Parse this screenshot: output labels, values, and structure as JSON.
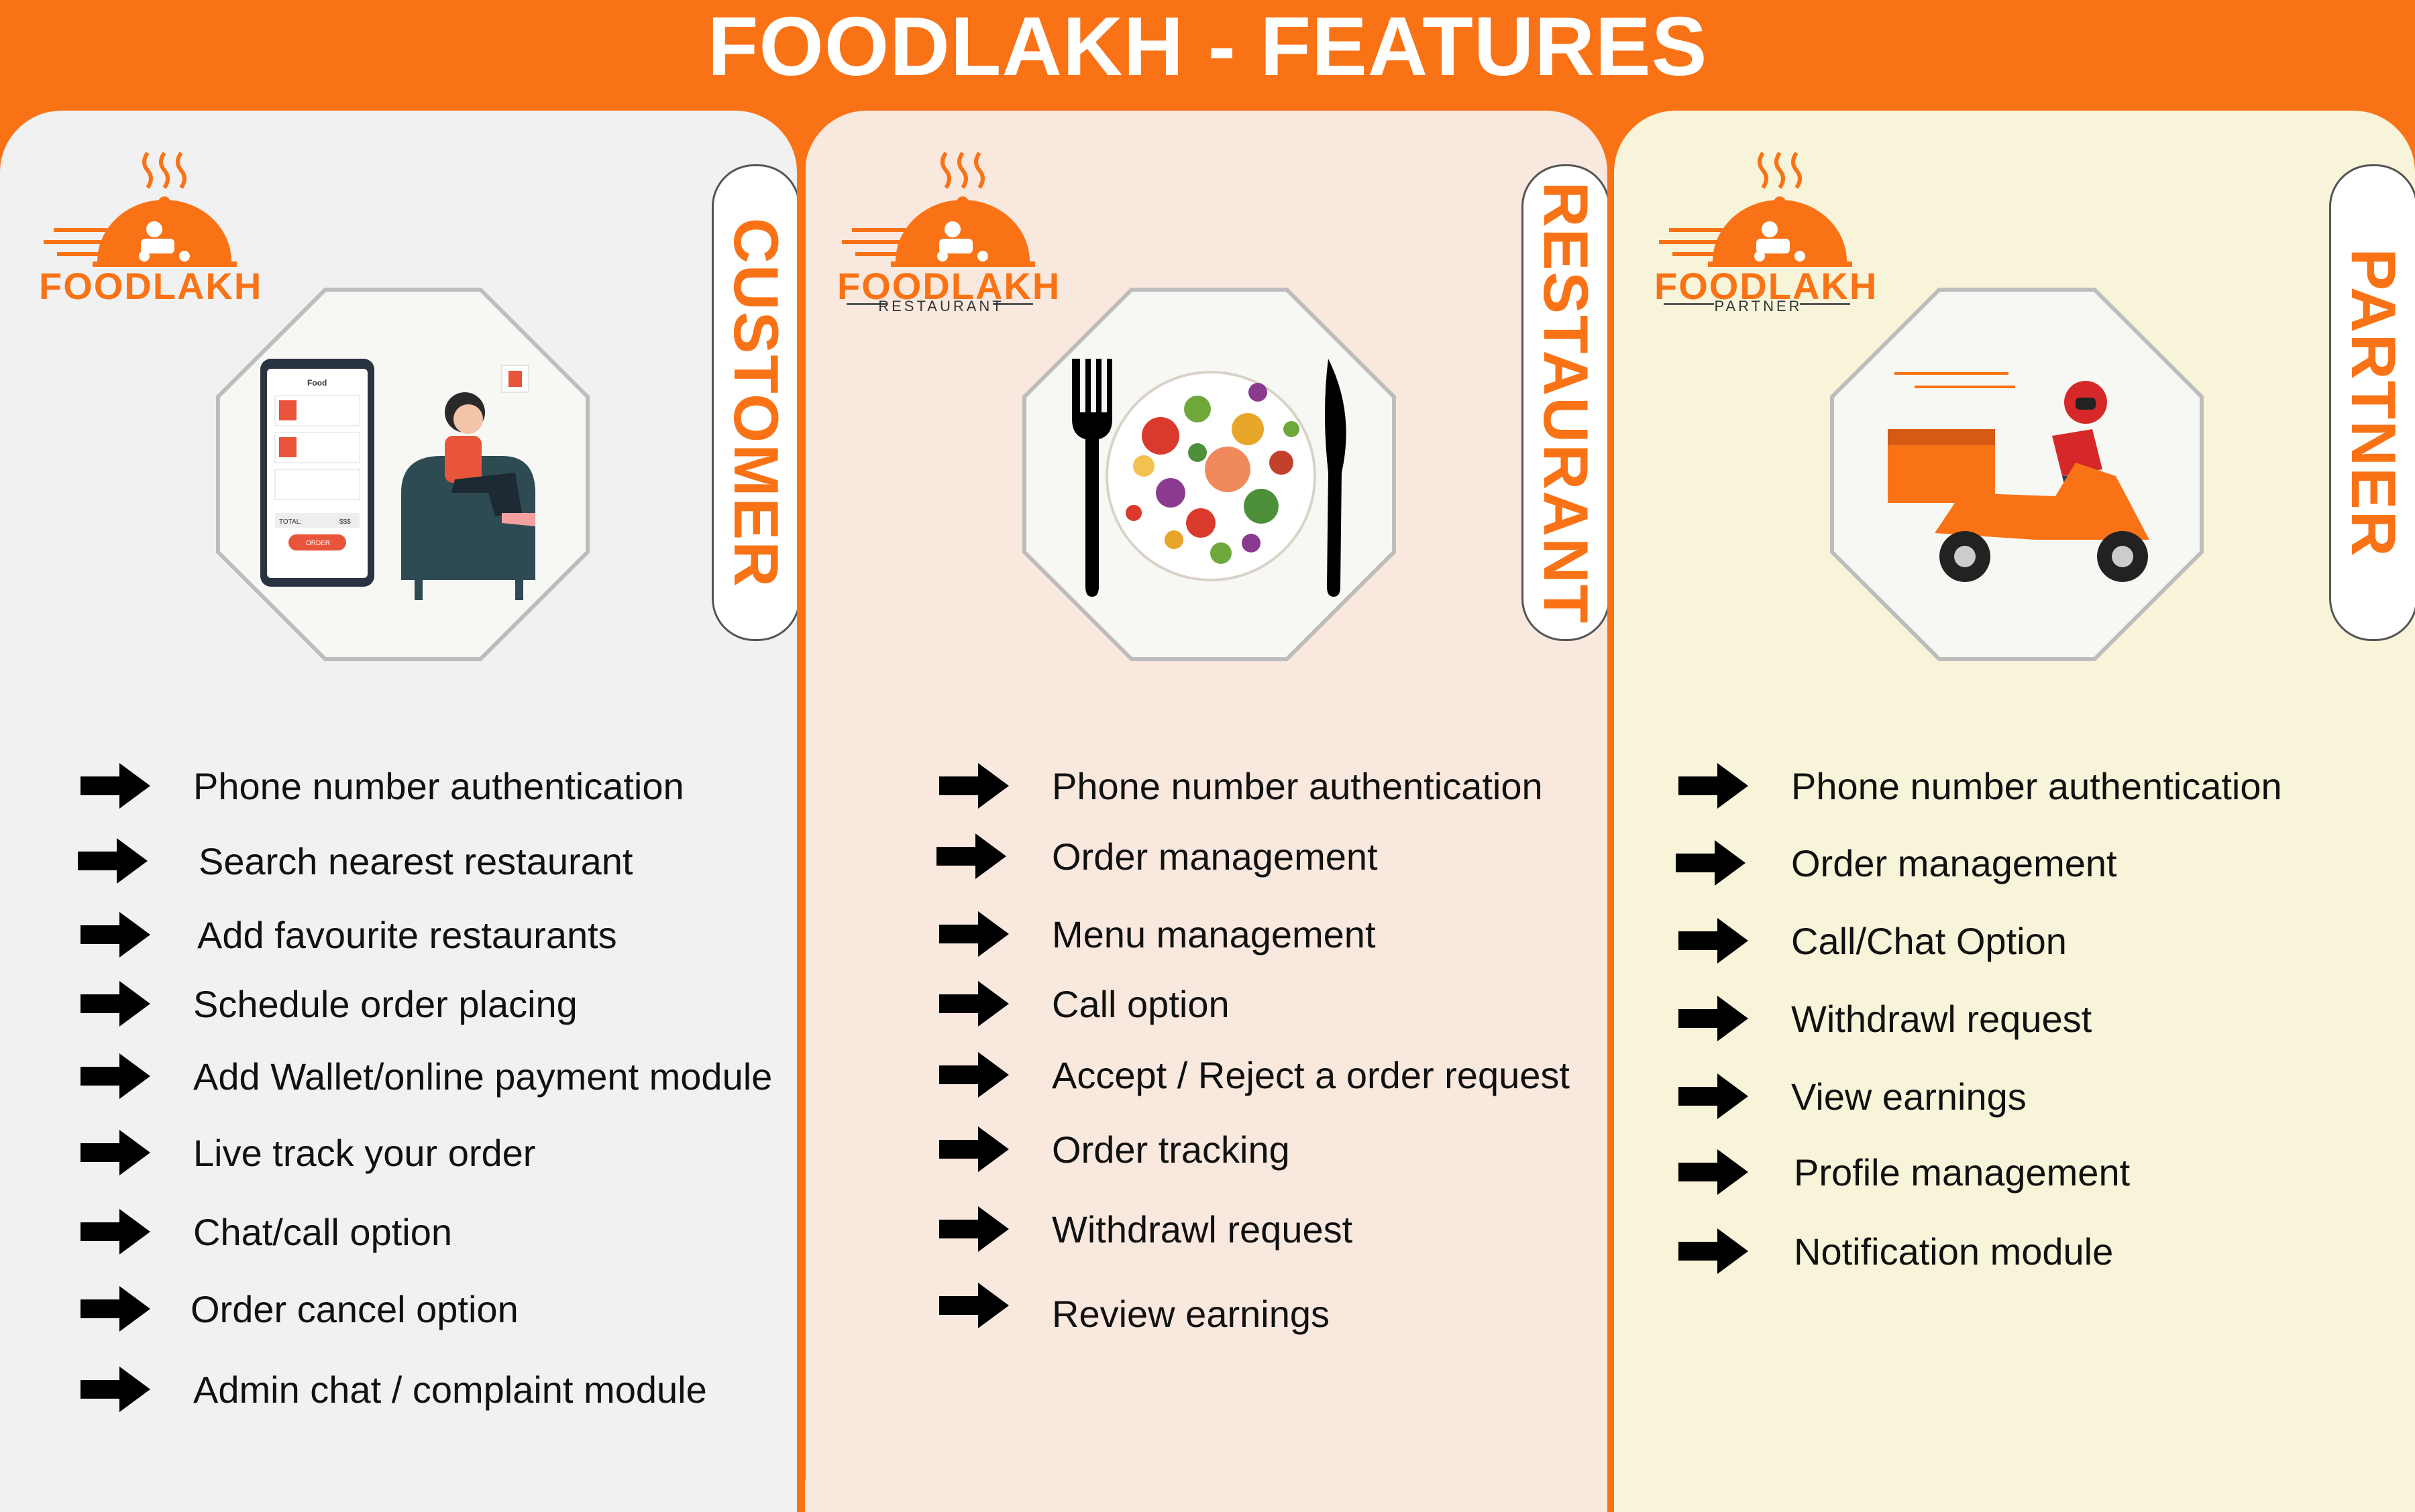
{
  "page": {
    "title": "FOODLAKH - FEATURES"
  },
  "colors": {
    "brand_orange": "#F97316",
    "customer_bg": "#F1F1F1",
    "restaurant_bg": "#F9E8DE",
    "partner_bg": "#F7F4D9"
  },
  "customer": {
    "tab_label": "CUSTOMER",
    "logo": {
      "brand": "FOODLAKH",
      "subtitle": ""
    },
    "illustration": {
      "screen_title": "Food",
      "total_label": "TOTAL:",
      "total_value": "$$$",
      "order_button": "ORDER"
    },
    "features": [
      "Phone number authentication",
      "Search nearest restaurant",
      "Add favourite restaurants",
      "Schedule order placing",
      "Add Wallet/online payment module",
      "Live track your order",
      "Chat/call option",
      "Order cancel option",
      "Admin chat / complaint module"
    ]
  },
  "restaurant": {
    "tab_label": "RESTAURANT",
    "logo": {
      "brand": "FOODLAKH",
      "subtitle": "RESTAURANT"
    },
    "features": [
      "Phone number authentication",
      "Order management",
      "Menu management",
      "Call option",
      "Accept / Reject a order request",
      "Order tracking",
      "Withdrawl request",
      "Review earnings"
    ]
  },
  "partner": {
    "tab_label": "PARTNER",
    "logo": {
      "brand": "FOODLAKH",
      "subtitle": "PARTNER"
    },
    "features": [
      "Phone number authentication",
      "Order management",
      "Call/Chat Option",
      "Withdrawl request",
      "View earnings",
      "Profile management",
      "Notification module"
    ]
  },
  "icons": {
    "logo": "cloche-scooter-logo",
    "bullet": "arrow-right-icon"
  }
}
